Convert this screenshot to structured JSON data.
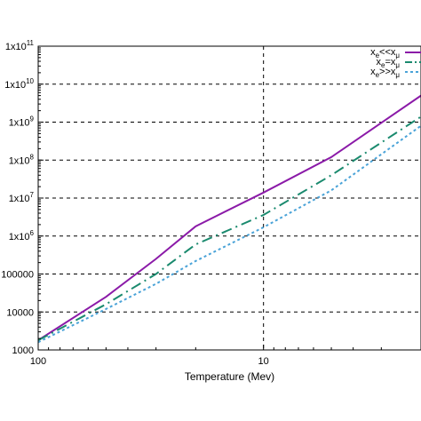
{
  "chart_data": {
    "type": "line",
    "title": "",
    "xlabel": "Temperature (Mev)",
    "ylabel": "",
    "x_scale": "log",
    "y_scale": "log",
    "x_reversed": true,
    "xlim": [
      100,
      2
    ],
    "ylim": [
      1000,
      100000000000
    ],
    "x_ticks": [
      {
        "value": 100,
        "label": "100"
      },
      {
        "value": 10,
        "label": "10"
      }
    ],
    "y_ticks": [
      {
        "value": 1000,
        "label": "1000"
      },
      {
        "value": 10000,
        "label": "10000"
      },
      {
        "value": 100000,
        "label": "100000"
      },
      {
        "value": 1000000,
        "label": "1x10",
        "exp": "6"
      },
      {
        "value": 10000000,
        "label": "1x10",
        "exp": "7"
      },
      {
        "value": 100000000,
        "label": "1x10",
        "exp": "8"
      },
      {
        "value": 1000000000,
        "label": "1x10",
        "exp": "9"
      },
      {
        "value": 10000000000,
        "label": "1x10",
        "exp": "10"
      },
      {
        "value": 100000000000,
        "label": "1x10",
        "exp": "11"
      }
    ],
    "grid": true,
    "legend_position": "top-right",
    "series": [
      {
        "name": "x_e<<x_μ",
        "legend": {
          "base": "x",
          "sub1": "e",
          "op": "<<x",
          "sub2": "μ"
        },
        "color": "#8b1aa8",
        "dash": "solid",
        "points": [
          [
            100,
            1800
          ],
          [
            50,
            25000
          ],
          [
            30,
            250000
          ],
          [
            20,
            1800000
          ],
          [
            10,
            14000000
          ],
          [
            5,
            120000000
          ],
          [
            2,
            5000000000
          ]
        ]
      },
      {
        "name": "x_e=x_μ",
        "legend": {
          "base": "x",
          "sub1": "e",
          "op": "=x",
          "sub2": "μ"
        },
        "color": "#1a8a6e",
        "dash": "dashdot",
        "points": [
          [
            100,
            1800
          ],
          [
            50,
            16000
          ],
          [
            30,
            100000
          ],
          [
            20,
            600000
          ],
          [
            10,
            3600000
          ],
          [
            5,
            40000000
          ],
          [
            2,
            1400000000
          ]
        ]
      },
      {
        "name": "x_e>>x_μ",
        "legend": {
          "base": "x",
          "sub1": "e",
          "op": ">>x",
          "sub2": "μ"
        },
        "color": "#4aa3d8",
        "dash": "dotted",
        "points": [
          [
            100,
            1600
          ],
          [
            50,
            12000
          ],
          [
            30,
            55000
          ],
          [
            20,
            220000
          ],
          [
            10,
            1700000
          ],
          [
            5,
            16000000
          ],
          [
            2,
            800000000
          ]
        ]
      }
    ]
  }
}
